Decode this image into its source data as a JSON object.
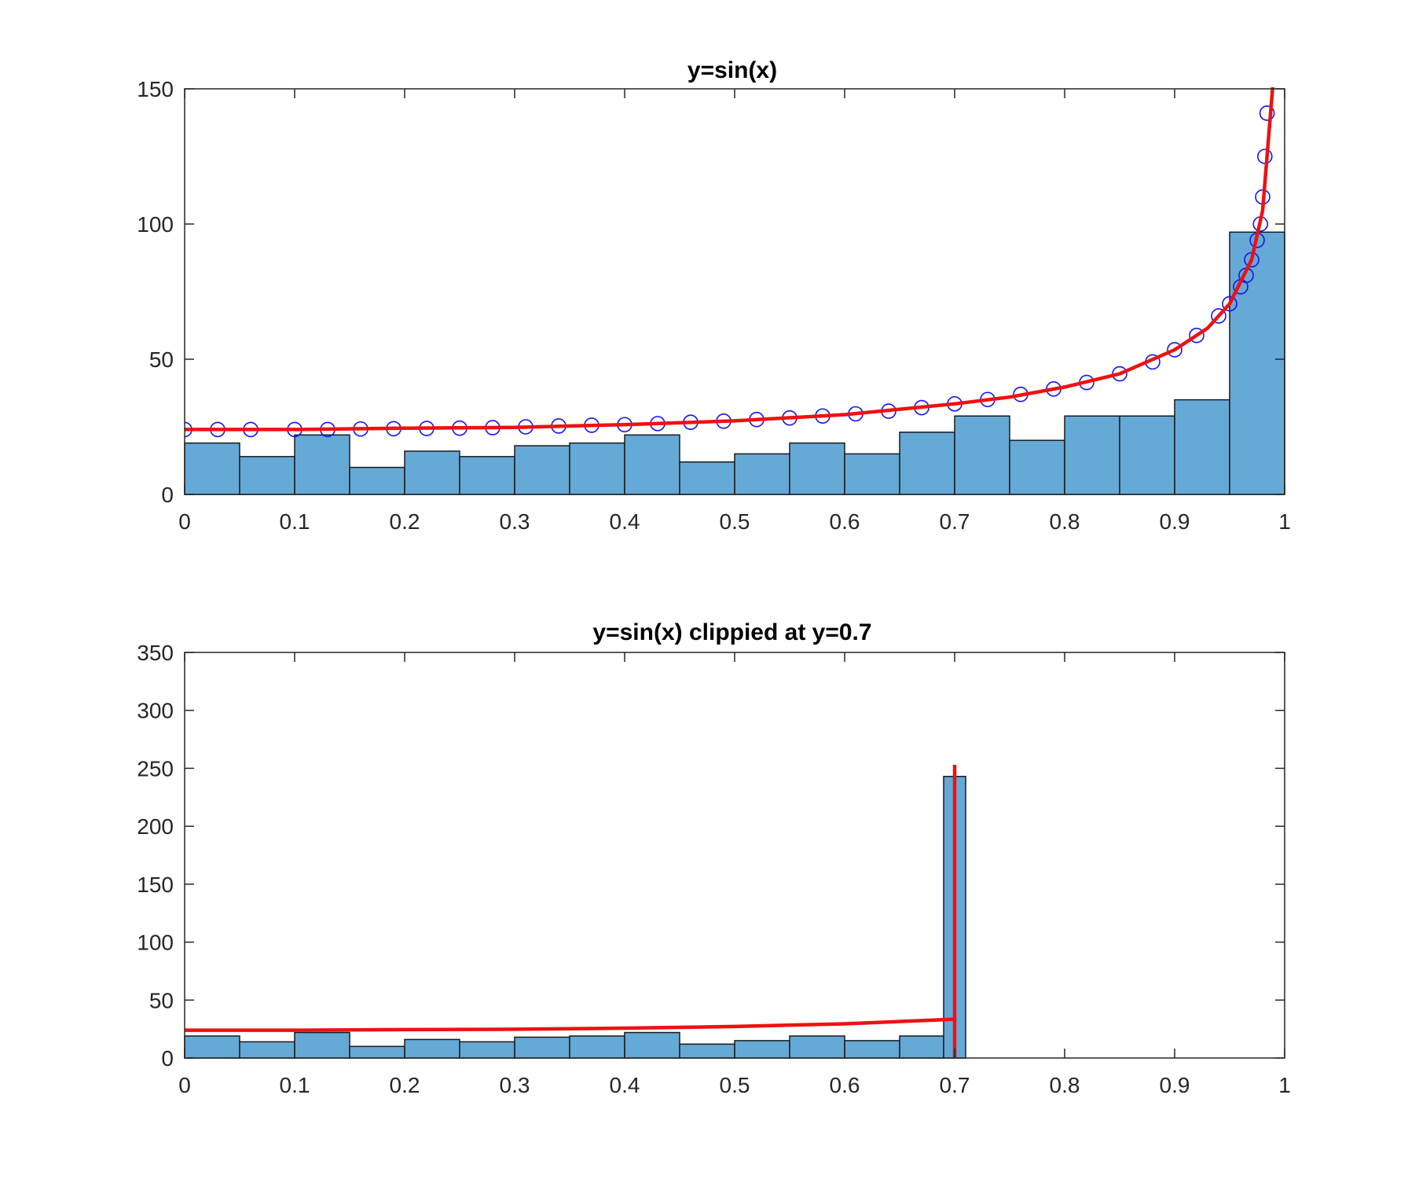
{
  "colors": {
    "bars": "#65a9d6",
    "bar_edge": "#1a1a1a",
    "fit": "#ee1111",
    "markers": "#1515ee"
  },
  "chart_data": [
    {
      "type": "bar",
      "title": "y=sin(x)",
      "xlabel": "",
      "ylabel": "",
      "xlim": [
        0,
        1
      ],
      "ylim": [
        0,
        150
      ],
      "xticks": [
        "0",
        "0.1",
        "0.2",
        "0.3",
        "0.4",
        "0.5",
        "0.6",
        "0.7",
        "0.8",
        "0.9",
        "1"
      ],
      "yticks": [
        "0",
        "50",
        "100",
        "150"
      ],
      "grid": false,
      "histogram": {
        "bin_edges": [
          0,
          0.05,
          0.1,
          0.15,
          0.2,
          0.25,
          0.3,
          0.35,
          0.4,
          0.45,
          0.5,
          0.55,
          0.6,
          0.65,
          0.7,
          0.75,
          0.8,
          0.85,
          0.9,
          0.95,
          1.0
        ],
        "counts": [
          19,
          14,
          22,
          10,
          16,
          14,
          18,
          19,
          22,
          12,
          15,
          19,
          15,
          23,
          29,
          20,
          29,
          29,
          35,
          97
        ]
      },
      "series": [
        {
          "type": "line",
          "x": [
            0,
            0.1,
            0.2,
            0.3,
            0.4,
            0.5,
            0.6,
            0.7,
            0.75,
            0.8,
            0.85,
            0.9,
            0.93,
            0.95,
            0.97,
            0.98,
            0.99
          ],
          "y": [
            24,
            24,
            24.5,
            24.8,
            25.8,
            27.2,
            29.5,
            33.5,
            36,
            39.7,
            44.6,
            53.5,
            61.5,
            70.5,
            86.8,
            105,
            155
          ]
        },
        {
          "type": "scatter",
          "marker": "circle",
          "x": [
            0,
            0.03,
            0.06,
            0.1,
            0.13,
            0.16,
            0.19,
            0.22,
            0.25,
            0.28,
            0.31,
            0.34,
            0.37,
            0.4,
            0.43,
            0.46,
            0.49,
            0.52,
            0.55,
            0.58,
            0.61,
            0.64,
            0.67,
            0.7,
            0.73,
            0.76,
            0.79,
            0.82,
            0.85,
            0.88,
            0.9,
            0.92,
            0.94,
            0.95,
            0.96,
            0.965,
            0.97,
            0.975,
            0.978,
            0.98,
            0.982,
            0.984
          ],
          "y": [
            24,
            24,
            24,
            24,
            24,
            24.2,
            24.3,
            24.4,
            24.5,
            24.7,
            25,
            25.3,
            25.6,
            25.8,
            26.2,
            26.7,
            27.1,
            27.7,
            28.3,
            29,
            29.8,
            30.8,
            32.1,
            33.5,
            35.1,
            37,
            39,
            41.4,
            44.6,
            49,
            53.5,
            58.8,
            66,
            70.5,
            76.8,
            81,
            86.8,
            94,
            100,
            110,
            125,
            141
          ]
        }
      ]
    },
    {
      "type": "bar",
      "title": "y=sin(x) clippied at y=0.7",
      "xlabel": "",
      "ylabel": "",
      "xlim": [
        0,
        1
      ],
      "ylim": [
        0,
        350
      ],
      "xticks": [
        "0",
        "0.1",
        "0.2",
        "0.3",
        "0.4",
        "0.5",
        "0.6",
        "0.7",
        "0.8",
        "0.9",
        "1"
      ],
      "yticks": [
        "0",
        "50",
        "100",
        "150",
        "200",
        "250",
        "300",
        "350"
      ],
      "grid": false,
      "histogram": {
        "bin_edges": [
          0,
          0.05,
          0.1,
          0.15,
          0.2,
          0.25,
          0.3,
          0.35,
          0.4,
          0.45,
          0.5,
          0.55,
          0.6,
          0.65,
          0.69,
          0.71
        ],
        "counts": [
          19,
          14,
          22,
          10,
          16,
          14,
          18,
          19,
          22,
          12,
          15,
          19,
          15,
          19,
          243
        ]
      },
      "series": [
        {
          "type": "line",
          "x": [
            0,
            0.1,
            0.2,
            0.3,
            0.4,
            0.5,
            0.6,
            0.7,
            0.7,
            0.7
          ],
          "y": [
            24,
            24,
            24.5,
            24.8,
            25.8,
            27.2,
            29.5,
            33.5,
            0,
            253
          ]
        }
      ]
    }
  ]
}
